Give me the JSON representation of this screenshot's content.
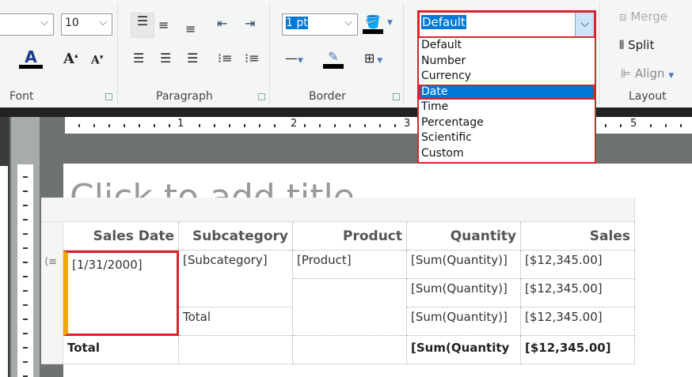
{
  "ribbon": {
    "font_size": "10",
    "border_width": "1 pt",
    "groups": {
      "font": "Font",
      "paragraph": "Paragraph",
      "border": "Border",
      "layout": "Layout"
    },
    "layout": {
      "merge": "Merge",
      "split": "Split",
      "align": "Align"
    }
  },
  "format_dropdown": {
    "value": "Default",
    "options": [
      "Default",
      "Number",
      "Currency",
      "Date",
      "Time",
      "Percentage",
      "Scientific",
      "Custom"
    ],
    "selected": "Date"
  },
  "ruler": {
    "labels": [
      "1",
      "2",
      "3",
      "5"
    ]
  },
  "report": {
    "title_placeholder": "Click to add title",
    "headers": [
      "Sales Date",
      "Subcategory",
      "Product",
      "Quantity",
      "Sales"
    ],
    "rows": [
      [
        "[1/31/2000]",
        "[Subcategory]",
        "[Product]",
        "[Sum(Quantity)]",
        "[$12,345.00]"
      ],
      [
        "",
        "",
        "",
        "[Sum(Quantity)]",
        "[$12,345.00]"
      ],
      [
        "",
        "Total",
        "",
        "[Sum(Quantity)]",
        "[$12,345.00]"
      ],
      [
        "Total",
        "",
        "",
        "[Sum(Quantity",
        "[$12,345.00]"
      ]
    ]
  },
  "colors": {
    "highlight": "#e0202a",
    "selection": "#0078d7",
    "group_marker": "#f0a800"
  }
}
